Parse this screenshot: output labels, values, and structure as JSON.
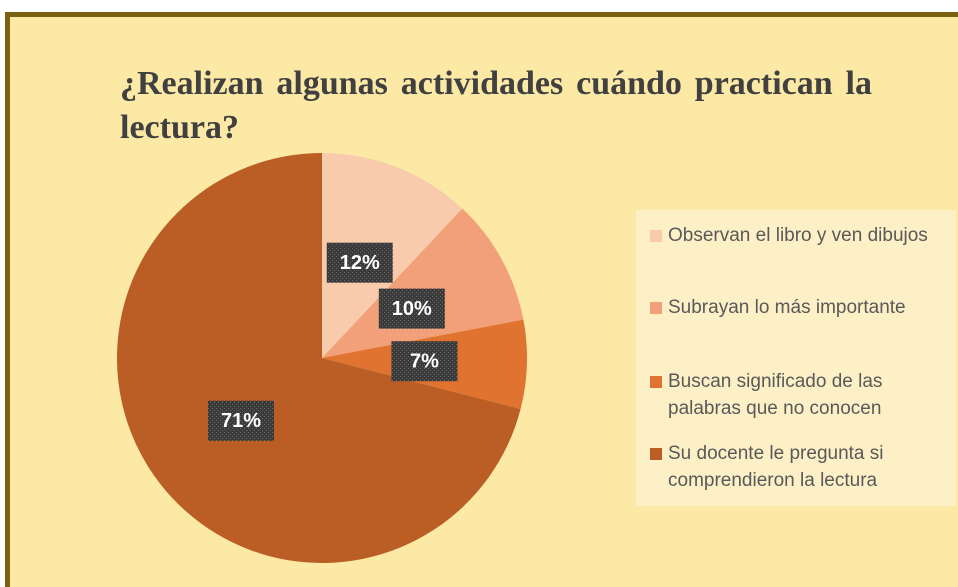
{
  "chart_data": {
    "type": "pie",
    "title": "¿Realizan algunas actividades cuándo practican la lectura?",
    "categories": [
      "Observan el libro y ven dibujos",
      "Subrayan lo más importante",
      "Buscan significado de las palabras que no conocen",
      "Su docente le pregunta si comprendieron la lectura"
    ],
    "values": [
      12,
      10,
      7,
      71
    ],
    "value_labels": [
      "12%",
      "10%",
      "7%",
      "71%"
    ],
    "colors": [
      "#f8cbad",
      "#f1a07a",
      "#e07330",
      "#bb5e25"
    ],
    "legend": "right"
  }
}
